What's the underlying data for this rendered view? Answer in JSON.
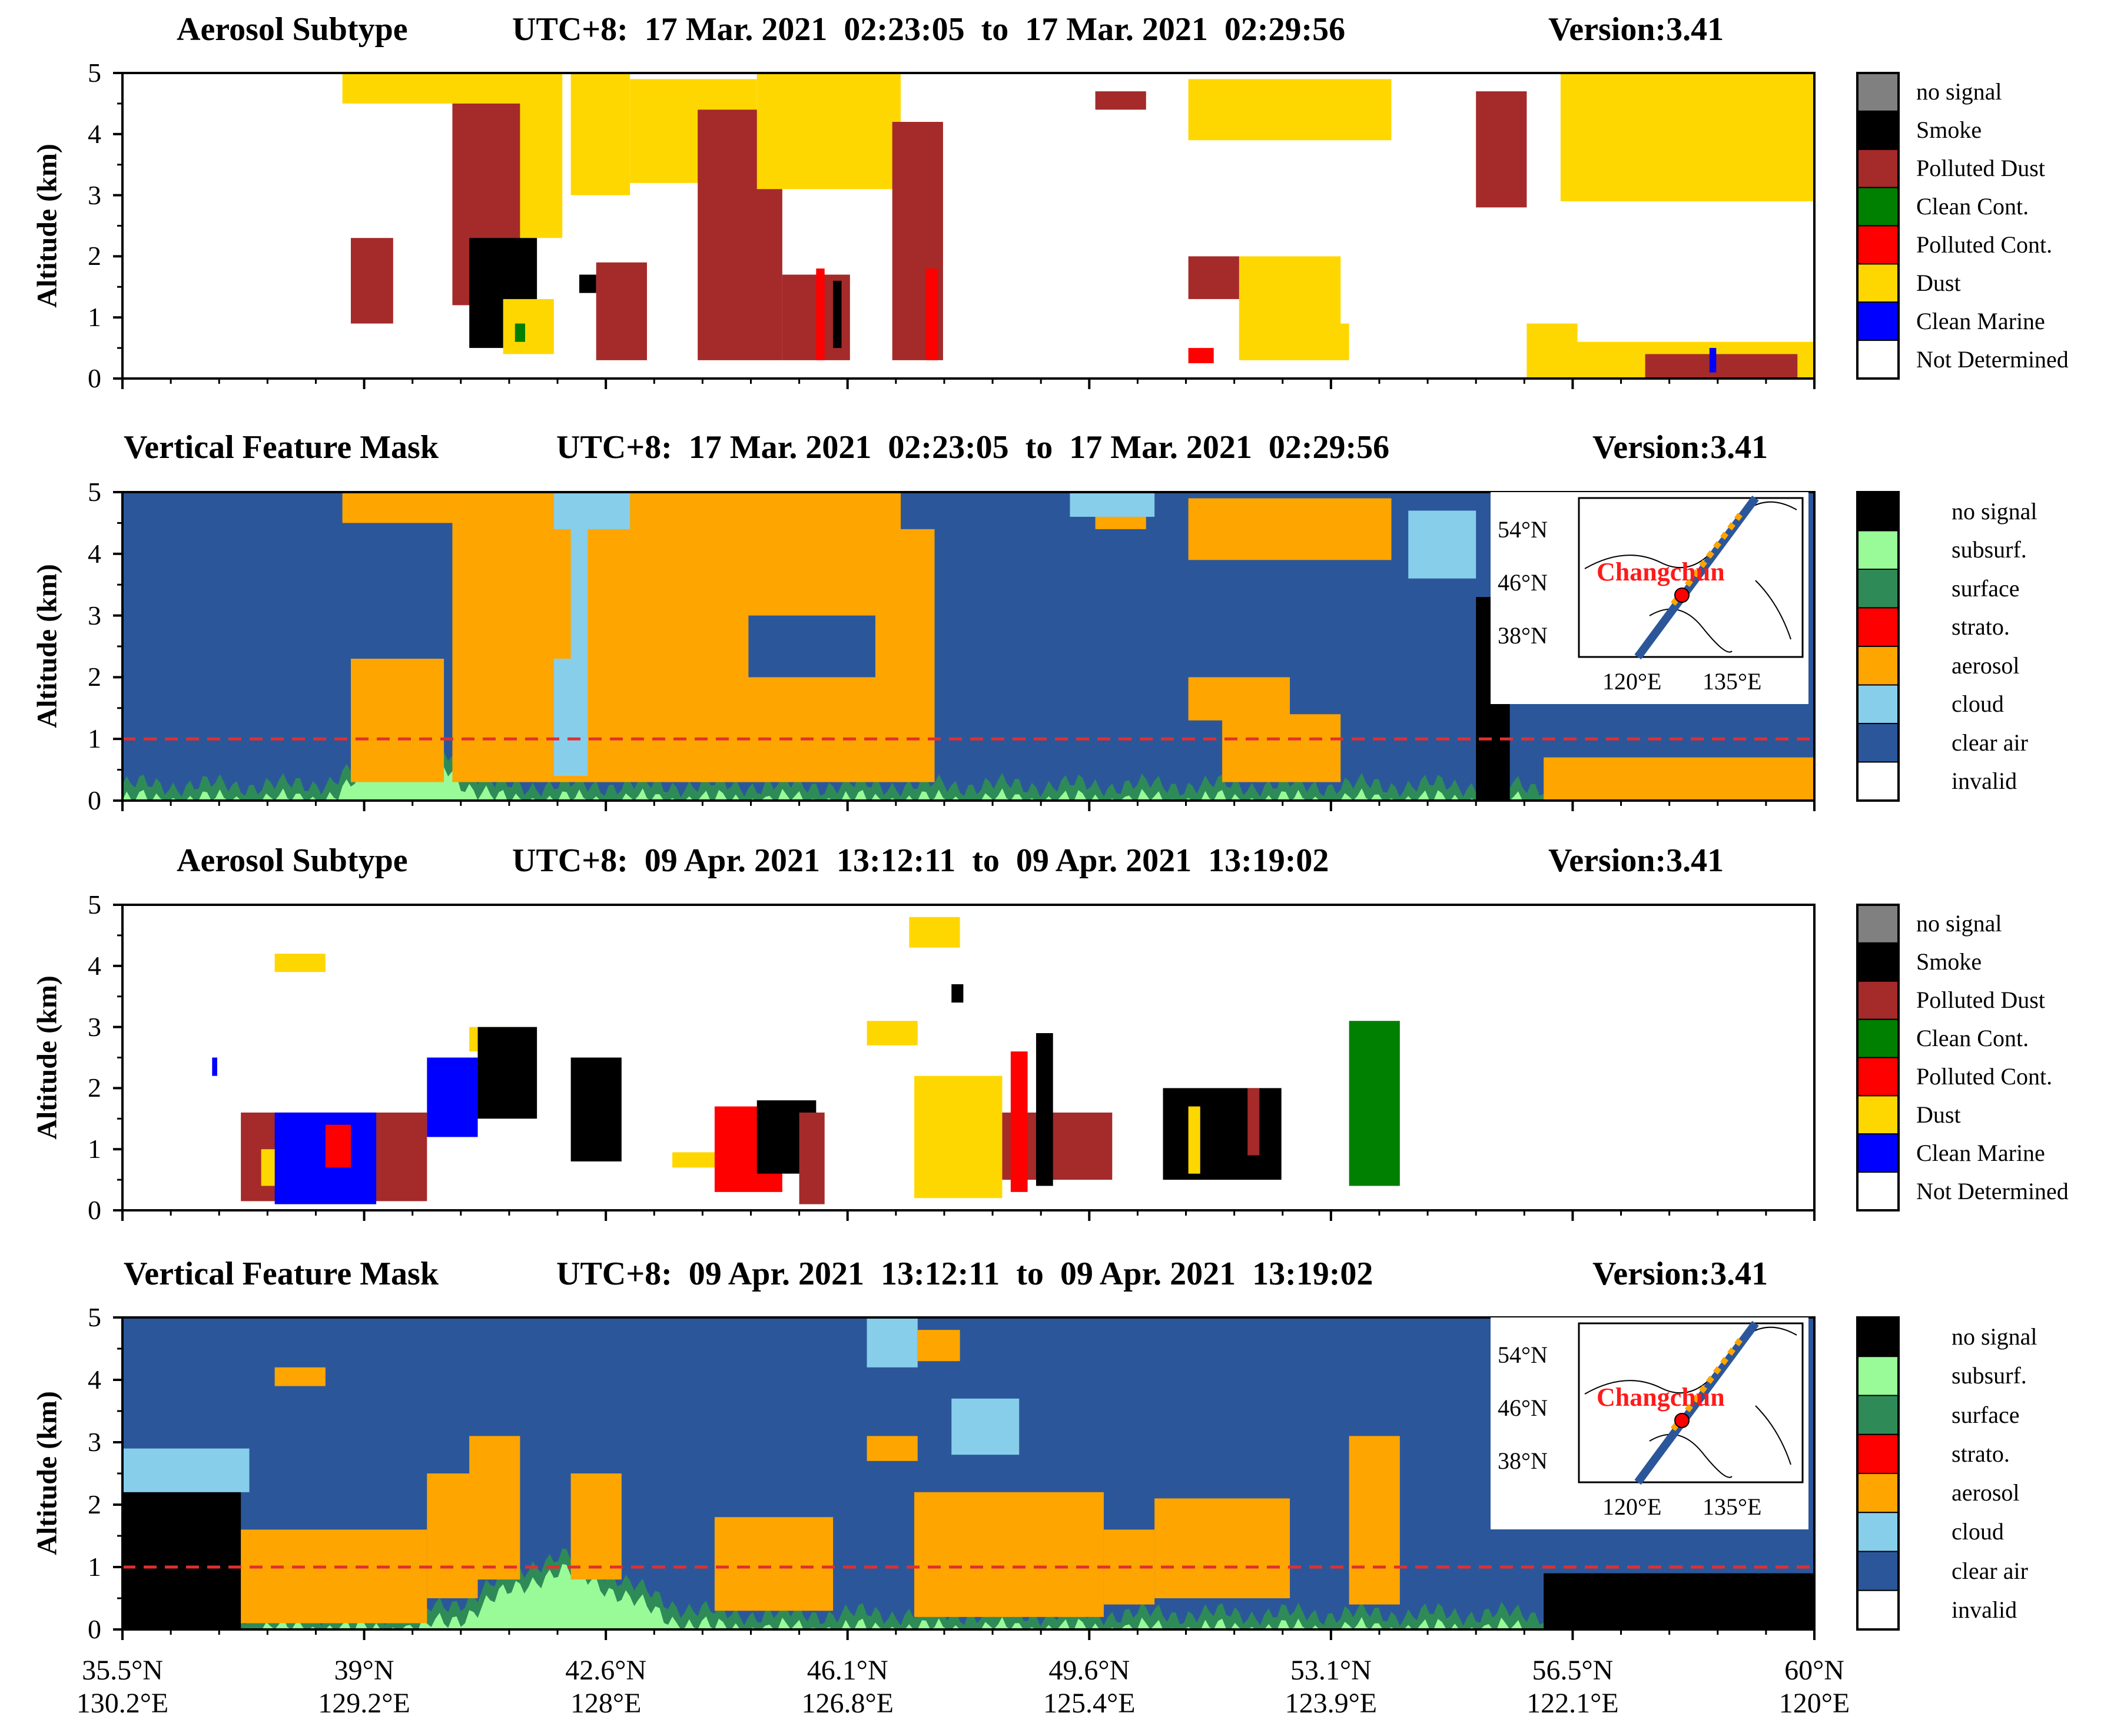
{
  "chart_data": [
    {
      "type": "heatmap",
      "title": "Aerosol Subtype",
      "time_label": "UTC+8:  17 Mar. 2021  02:23:05  to  17 Mar. 2021  02:29:56",
      "version": "Version:3.41",
      "ylabel": "Altitude (km)",
      "ylim": [
        0,
        5
      ],
      "yticks": [
        "0",
        "1",
        "2",
        "3",
        "4",
        "5"
      ],
      "legend": [
        "no signal",
        "Smoke",
        "Polluted Dust",
        "Clean Cont.",
        "Polluted Cont.",
        "Dust",
        "Clean Marine",
        "Not Determined"
      ],
      "legend_colors": [
        "#808080",
        "#000000",
        "#a52a2a",
        "#008000",
        "#ff0000",
        "#ffd700",
        "#0000ff",
        "#ffffff"
      ],
      "background": "Not Determined",
      "regions": [
        {
          "c": "Dust",
          "x0": 0.13,
          "x1": 0.22,
          "y0": 4.5,
          "y1": 5.0
        },
        {
          "c": "Dust",
          "x0": 0.2,
          "x1": 0.26,
          "y0": 2.3,
          "y1": 5.0
        },
        {
          "c": "Polluted Dust",
          "x0": 0.135,
          "x1": 0.16,
          "y0": 0.9,
          "y1": 2.3
        },
        {
          "c": "Polluted Dust",
          "x0": 0.195,
          "x1": 0.235,
          "y0": 1.2,
          "y1": 4.5
        },
        {
          "c": "Smoke",
          "x0": 0.205,
          "x1": 0.245,
          "y0": 0.5,
          "y1": 2.3
        },
        {
          "c": "Dust",
          "x0": 0.225,
          "x1": 0.255,
          "y0": 0.4,
          "y1": 1.3
        },
        {
          "c": "Clean Cont.",
          "x0": 0.232,
          "x1": 0.238,
          "y0": 0.6,
          "y1": 0.9
        },
        {
          "c": "Dust",
          "x0": 0.265,
          "x1": 0.3,
          "y0": 3.0,
          "y1": 5.0
        },
        {
          "c": "Dust",
          "x0": 0.3,
          "x1": 0.375,
          "y0": 3.2,
          "y1": 4.9
        },
        {
          "c": "Smoke",
          "x0": 0.27,
          "x1": 0.28,
          "y0": 1.4,
          "y1": 1.7
        },
        {
          "c": "Polluted Dust",
          "x0": 0.28,
          "x1": 0.31,
          "y0": 0.3,
          "y1": 1.9
        },
        {
          "c": "Polluted Dust",
          "x0": 0.34,
          "x1": 0.39,
          "y0": 0.3,
          "y1": 4.4
        },
        {
          "c": "Polluted Dust",
          "x0": 0.39,
          "x1": 0.43,
          "y0": 0.3,
          "y1": 1.7
        },
        {
          "c": "Polluted Cont.",
          "x0": 0.41,
          "x1": 0.415,
          "y0": 0.3,
          "y1": 1.8
        },
        {
          "c": "Smoke",
          "x0": 0.42,
          "x1": 0.425,
          "y0": 0.5,
          "y1": 1.6
        },
        {
          "c": "Dust",
          "x0": 0.375,
          "x1": 0.46,
          "y0": 3.1,
          "y1": 5.0
        },
        {
          "c": "Polluted Dust",
          "x0": 0.455,
          "x1": 0.485,
          "y0": 0.3,
          "y1": 4.2
        },
        {
          "c": "Polluted Cont.",
          "x0": 0.475,
          "x1": 0.482,
          "y0": 0.3,
          "y1": 1.8
        },
        {
          "c": "Polluted Dust",
          "x0": 0.575,
          "x1": 0.605,
          "y0": 4.4,
          "y1": 4.7
        },
        {
          "c": "Dust",
          "x0": 0.63,
          "x1": 0.75,
          "y0": 3.9,
          "y1": 4.9
        },
        {
          "c": "Dust",
          "x0": 0.66,
          "x1": 0.72,
          "y0": 0.4,
          "y1": 2.0
        },
        {
          "c": "Polluted Dust",
          "x0": 0.63,
          "x1": 0.66,
          "y0": 1.3,
          "y1": 2.0
        },
        {
          "c": "Polluted Cont.",
          "x0": 0.63,
          "x1": 0.645,
          "y0": 0.25,
          "y1": 0.5
        },
        {
          "c": "Dust",
          "x0": 0.66,
          "x1": 0.725,
          "y0": 0.3,
          "y1": 0.9
        },
        {
          "c": "Polluted Dust",
          "x0": 0.8,
          "x1": 0.83,
          "y0": 2.8,
          "y1": 4.7
        },
        {
          "c": "Dust",
          "x0": 0.83,
          "x1": 0.86,
          "y0": 0.0,
          "y1": 0.9
        },
        {
          "c": "Dust",
          "x0": 0.85,
          "x1": 1.0,
          "y0": 2.9,
          "y1": 5.0
        },
        {
          "c": "Dust",
          "x0": 0.85,
          "x1": 1.0,
          "y0": 0.0,
          "y1": 0.6
        },
        {
          "c": "Polluted Dust",
          "x0": 0.9,
          "x1": 0.99,
          "y0": 0.0,
          "y1": 0.4
        },
        {
          "c": "Clean Marine",
          "x0": 0.938,
          "x1": 0.942,
          "y0": 0.1,
          "y1": 0.5
        }
      ],
      "inset": null
    },
    {
      "type": "heatmap",
      "title": "Vertical Feature Mask",
      "time_label": "UTC+8:  17 Mar. 2021  02:23:05  to  17 Mar. 2021  02:29:56",
      "version": "Version:3.41",
      "ylabel": "Altitude (km)",
      "ylim": [
        0,
        5
      ],
      "yticks": [
        "0",
        "1",
        "2",
        "3",
        "4",
        "5"
      ],
      "legend": [
        "no signal",
        "subsurf.",
        "surface",
        "strato.",
        "aerosol",
        "cloud",
        "clear air",
        "invalid"
      ],
      "legend_colors": [
        "#000000",
        "#98fb98",
        "#2e8b57",
        "#ff0000",
        "#ffa500",
        "#87ceeb",
        "#2b579a",
        "#ffffff"
      ],
      "background": "clear air",
      "reference_line": 1.0,
      "regions": [
        {
          "c": "aerosol",
          "x0": 0.13,
          "x1": 0.22,
          "y0": 4.5,
          "y1": 5.0
        },
        {
          "c": "aerosol",
          "x0": 0.195,
          "x1": 0.35,
          "y0": 0.3,
          "y1": 5.0
        },
        {
          "c": "cloud",
          "x0": 0.255,
          "x1": 0.3,
          "y0": 4.4,
          "y1": 5.0
        },
        {
          "c": "cloud",
          "x0": 0.255,
          "x1": 0.275,
          "y0": 0.4,
          "y1": 2.3
        },
        {
          "c": "cloud",
          "x0": 0.265,
          "x1": 0.275,
          "y0": 2.3,
          "y1": 5.0
        },
        {
          "c": "aerosol",
          "x0": 0.135,
          "x1": 0.19,
          "y0": 0.3,
          "y1": 2.3
        },
        {
          "c": "aerosol",
          "x0": 0.34,
          "x1": 0.38,
          "y0": 0.3,
          "y1": 2.7
        },
        {
          "c": "aerosol",
          "x0": 0.33,
          "x1": 0.46,
          "y0": 3.8,
          "y1": 5.0
        },
        {
          "c": "aerosol",
          "x0": 0.34,
          "x1": 0.48,
          "y0": 0.3,
          "y1": 4.4
        },
        {
          "c": "clear air",
          "x0": 0.37,
          "x1": 0.445,
          "y0": 2.0,
          "y1": 3.0
        },
        {
          "c": "aerosol",
          "x0": 0.575,
          "x1": 0.605,
          "y0": 4.4,
          "y1": 4.7
        },
        {
          "c": "cloud",
          "x0": 0.56,
          "x1": 0.61,
          "y0": 4.6,
          "y1": 5.0
        },
        {
          "c": "aerosol",
          "x0": 0.63,
          "x1": 0.75,
          "y0": 3.9,
          "y1": 4.9
        },
        {
          "c": "aerosol",
          "x0": 0.63,
          "x1": 0.69,
          "y0": 1.3,
          "y1": 2.0
        },
        {
          "c": "aerosol",
          "x0": 0.65,
          "x1": 0.72,
          "y0": 0.3,
          "y1": 1.4
        },
        {
          "c": "cloud",
          "x0": 0.76,
          "x1": 0.8,
          "y0": 3.6,
          "y1": 4.7
        },
        {
          "c": "no signal",
          "x0": 0.8,
          "x1": 0.82,
          "y0": 0.0,
          "y1": 3.3
        },
        {
          "c": "aerosol",
          "x0": 0.84,
          "x1": 1.0,
          "y0": 0.0,
          "y1": 0.7
        }
      ],
      "inset": {
        "lats": [
          "54°N",
          "46°N",
          "38°N"
        ],
        "lons": [
          "120°E",
          "135°E"
        ],
        "city": "Changchun"
      }
    },
    {
      "type": "heatmap",
      "title": "Aerosol Subtype",
      "time_label": "UTC+8:  09 Apr. 2021  13:12:11  to  09 Apr. 2021  13:19:02",
      "version": "Version:3.41",
      "ylabel": "Altitude (km)",
      "ylim": [
        0,
        5
      ],
      "yticks": [
        "0",
        "1",
        "2",
        "3",
        "4",
        "5"
      ],
      "legend": [
        "no signal",
        "Smoke",
        "Polluted Dust",
        "Clean Cont.",
        "Polluted Cont.",
        "Dust",
        "Clean Marine",
        "Not Determined"
      ],
      "legend_colors": [
        "#808080",
        "#000000",
        "#a52a2a",
        "#008000",
        "#ff0000",
        "#ffd700",
        "#0000ff",
        "#ffffff"
      ],
      "background": "Not Determined",
      "regions": [
        {
          "c": "Dust",
          "x0": 0.09,
          "x1": 0.12,
          "y0": 3.9,
          "y1": 4.2
        },
        {
          "c": "Clean Marine",
          "x0": 0.053,
          "x1": 0.056,
          "y0": 2.2,
          "y1": 2.5
        },
        {
          "c": "Polluted Dust",
          "x0": 0.07,
          "x1": 0.18,
          "y0": 0.15,
          "y1": 1.6
        },
        {
          "c": "Clean Marine",
          "x0": 0.09,
          "x1": 0.15,
          "y0": 0.1,
          "y1": 1.6
        },
        {
          "c": "Polluted Cont.",
          "x0": 0.12,
          "x1": 0.135,
          "y0": 0.7,
          "y1": 1.4
        },
        {
          "c": "Dust",
          "x0": 0.082,
          "x1": 0.09,
          "y0": 0.4,
          "y1": 1.0
        },
        {
          "c": "Clean Marine",
          "x0": 0.18,
          "x1": 0.21,
          "y0": 1.2,
          "y1": 2.5
        },
        {
          "c": "Dust",
          "x0": 0.205,
          "x1": 0.235,
          "y0": 2.6,
          "y1": 3.0
        },
        {
          "c": "Smoke",
          "x0": 0.21,
          "x1": 0.245,
          "y0": 1.5,
          "y1": 3.0
        },
        {
          "c": "Smoke",
          "x0": 0.265,
          "x1": 0.295,
          "y0": 0.8,
          "y1": 2.5
        },
        {
          "c": "Dust",
          "x0": 0.325,
          "x1": 0.35,
          "y0": 0.7,
          "y1": 0.95
        },
        {
          "c": "Polluted Cont.",
          "x0": 0.35,
          "x1": 0.39,
          "y0": 0.3,
          "y1": 1.7
        },
        {
          "c": "Smoke",
          "x0": 0.375,
          "x1": 0.41,
          "y0": 0.6,
          "y1": 1.8
        },
        {
          "c": "Polluted Dust",
          "x0": 0.4,
          "x1": 0.415,
          "y0": 0.1,
          "y1": 1.6
        },
        {
          "c": "Dust",
          "x0": 0.44,
          "x1": 0.47,
          "y0": 2.7,
          "y1": 3.1
        },
        {
          "c": "Dust",
          "x0": 0.465,
          "x1": 0.495,
          "y0": 4.3,
          "y1": 4.8
        },
        {
          "c": "Smoke",
          "x0": 0.49,
          "x1": 0.497,
          "y0": 3.4,
          "y1": 3.7
        },
        {
          "c": "Dust",
          "x0": 0.468,
          "x1": 0.52,
          "y0": 0.2,
          "y1": 2.2
        },
        {
          "c": "Polluted Dust",
          "x0": 0.52,
          "x1": 0.585,
          "y0": 0.5,
          "y1": 1.6
        },
        {
          "c": "Polluted Cont.",
          "x0": 0.525,
          "x1": 0.535,
          "y0": 0.3,
          "y1": 2.6
        },
        {
          "c": "Smoke",
          "x0": 0.54,
          "x1": 0.55,
          "y0": 0.4,
          "y1": 2.9
        },
        {
          "c": "Smoke",
          "x0": 0.615,
          "x1": 0.685,
          "y0": 0.5,
          "y1": 2.0
        },
        {
          "c": "Dust",
          "x0": 0.63,
          "x1": 0.637,
          "y0": 0.6,
          "y1": 1.7
        },
        {
          "c": "Polluted Dust",
          "x0": 0.665,
          "x1": 0.672,
          "y0": 0.9,
          "y1": 2.0
        },
        {
          "c": "Clean Cont.",
          "x0": 0.725,
          "x1": 0.755,
          "y0": 0.4,
          "y1": 3.1
        }
      ],
      "inset": null
    },
    {
      "type": "heatmap",
      "title": "Vertical Feature Mask",
      "time_label": "UTC+8:  09 Apr. 2021  13:12:11  to  09 Apr. 2021  13:19:02",
      "version": "Version:3.41",
      "ylabel": "Altitude (km)",
      "ylim": [
        0,
        5
      ],
      "yticks": [
        "0",
        "1",
        "2",
        "3",
        "4",
        "5"
      ],
      "legend": [
        "no signal",
        "subsurf.",
        "surface",
        "strato.",
        "aerosol",
        "cloud",
        "clear air",
        "invalid"
      ],
      "legend_colors": [
        "#000000",
        "#98fb98",
        "#2e8b57",
        "#ff0000",
        "#ffa500",
        "#87ceeb",
        "#2b579a",
        "#ffffff"
      ],
      "background": "clear air",
      "reference_line": 1.0,
      "regions": [
        {
          "c": "no signal",
          "x0": 0.0,
          "x1": 0.07,
          "y0": 0.0,
          "y1": 2.3
        },
        {
          "c": "cloud",
          "x0": 0.0,
          "x1": 0.075,
          "y0": 2.2,
          "y1": 2.9
        },
        {
          "c": "aerosol",
          "x0": 0.09,
          "x1": 0.12,
          "y0": 3.9,
          "y1": 4.2
        },
        {
          "c": "aerosol",
          "x0": 0.07,
          "x1": 0.18,
          "y0": 0.1,
          "y1": 1.6
        },
        {
          "c": "aerosol",
          "x0": 0.18,
          "x1": 0.21,
          "y0": 0.5,
          "y1": 2.5
        },
        {
          "c": "aerosol",
          "x0": 0.205,
          "x1": 0.235,
          "y0": 0.8,
          "y1": 3.1
        },
        {
          "c": "aerosol",
          "x0": 0.265,
          "x1": 0.295,
          "y0": 0.8,
          "y1": 2.5
        },
        {
          "c": "aerosol",
          "x0": 0.35,
          "x1": 0.42,
          "y0": 0.3,
          "y1": 1.8
        },
        {
          "c": "cloud",
          "x0": 0.44,
          "x1": 0.47,
          "y0": 4.2,
          "y1": 5.0
        },
        {
          "c": "aerosol",
          "x0": 0.47,
          "x1": 0.495,
          "y0": 4.3,
          "y1": 4.8
        },
        {
          "c": "aerosol",
          "x0": 0.44,
          "x1": 0.47,
          "y0": 2.7,
          "y1": 3.1
        },
        {
          "c": "aerosol",
          "x0": 0.468,
          "x1": 0.58,
          "y0": 0.2,
          "y1": 2.2
        },
        {
          "c": "cloud",
          "x0": 0.49,
          "x1": 0.53,
          "y0": 2.8,
          "y1": 3.7
        },
        {
          "c": "aerosol",
          "x0": 0.58,
          "x1": 0.61,
          "y0": 0.4,
          "y1": 1.6
        },
        {
          "c": "aerosol",
          "x0": 0.61,
          "x1": 0.69,
          "y0": 0.5,
          "y1": 2.1
        },
        {
          "c": "aerosol",
          "x0": 0.725,
          "x1": 0.755,
          "y0": 0.4,
          "y1": 3.1
        },
        {
          "c": "no signal",
          "x0": 0.84,
          "x1": 1.0,
          "y0": 0.0,
          "y1": 0.9
        }
      ],
      "inset": {
        "lats": [
          "54°N",
          "46°N",
          "38°N"
        ],
        "lons": [
          "120°E",
          "135°E"
        ],
        "city": "Changchun"
      }
    }
  ],
  "x_axis": {
    "ticks": [
      {
        "lat": "35.5°N",
        "lon": "130.2°E"
      },
      {
        "lat": "39°N",
        "lon": "129.2°E"
      },
      {
        "lat": "42.6°N",
        "lon": "128°E"
      },
      {
        "lat": "46.1°N",
        "lon": "126.8°E"
      },
      {
        "lat": "49.6°N",
        "lon": "125.4°E"
      },
      {
        "lat": "53.1°N",
        "lon": "123.9°E"
      },
      {
        "lat": "56.5°N",
        "lon": "122.1°E"
      },
      {
        "lat": "60°N",
        "lon": "120°E"
      }
    ]
  }
}
